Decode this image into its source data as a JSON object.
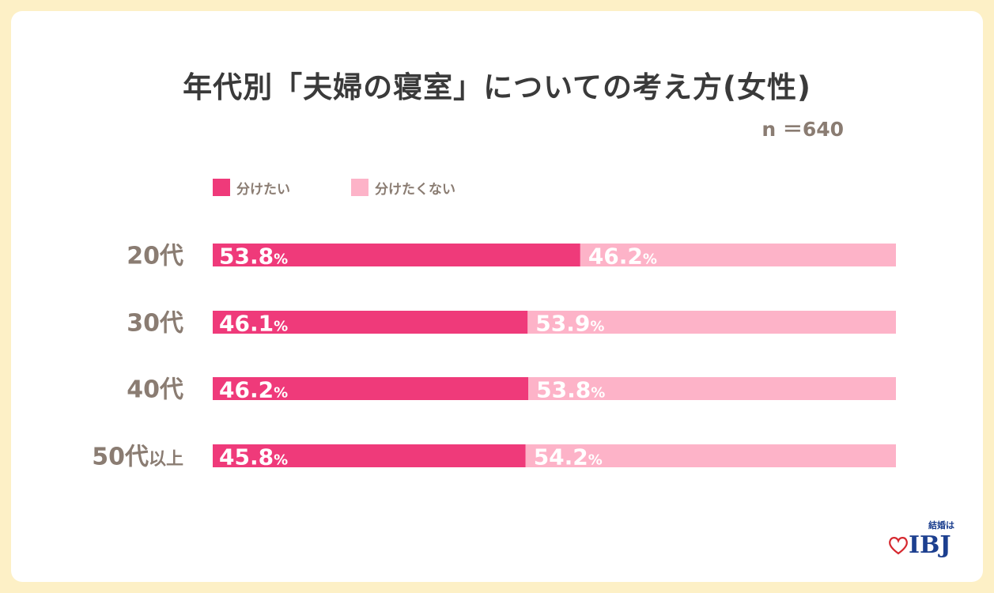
{
  "chart_data": {
    "type": "bar",
    "orientation": "horizontal",
    "stacked": true,
    "title": "年代別「夫婦の寝室」についての考え方(女性)",
    "sample_size": "n ＝640",
    "categories": [
      {
        "prefix": "20代",
        "suffix": ""
      },
      {
        "prefix": "30代",
        "suffix": ""
      },
      {
        "prefix": "40代",
        "suffix": ""
      },
      {
        "prefix": "50代",
        "suffix": "以上"
      }
    ],
    "series": [
      {
        "name": "分けたい",
        "values": [
          53.8,
          46.1,
          46.2,
          45.8
        ],
        "color": "#ef3a7a"
      },
      {
        "name": "分けたくない",
        "values": [
          46.2,
          53.9,
          53.8,
          54.2
        ],
        "color": "#fdb3c8"
      }
    ],
    "unit": "%",
    "xlim": [
      0,
      100
    ],
    "legend_position": "top-left",
    "grid": false
  },
  "logo": {
    "tagline": "結婚は",
    "name": "IBJ",
    "color": "#1c3f8f",
    "heart_color": "#d6282f"
  }
}
